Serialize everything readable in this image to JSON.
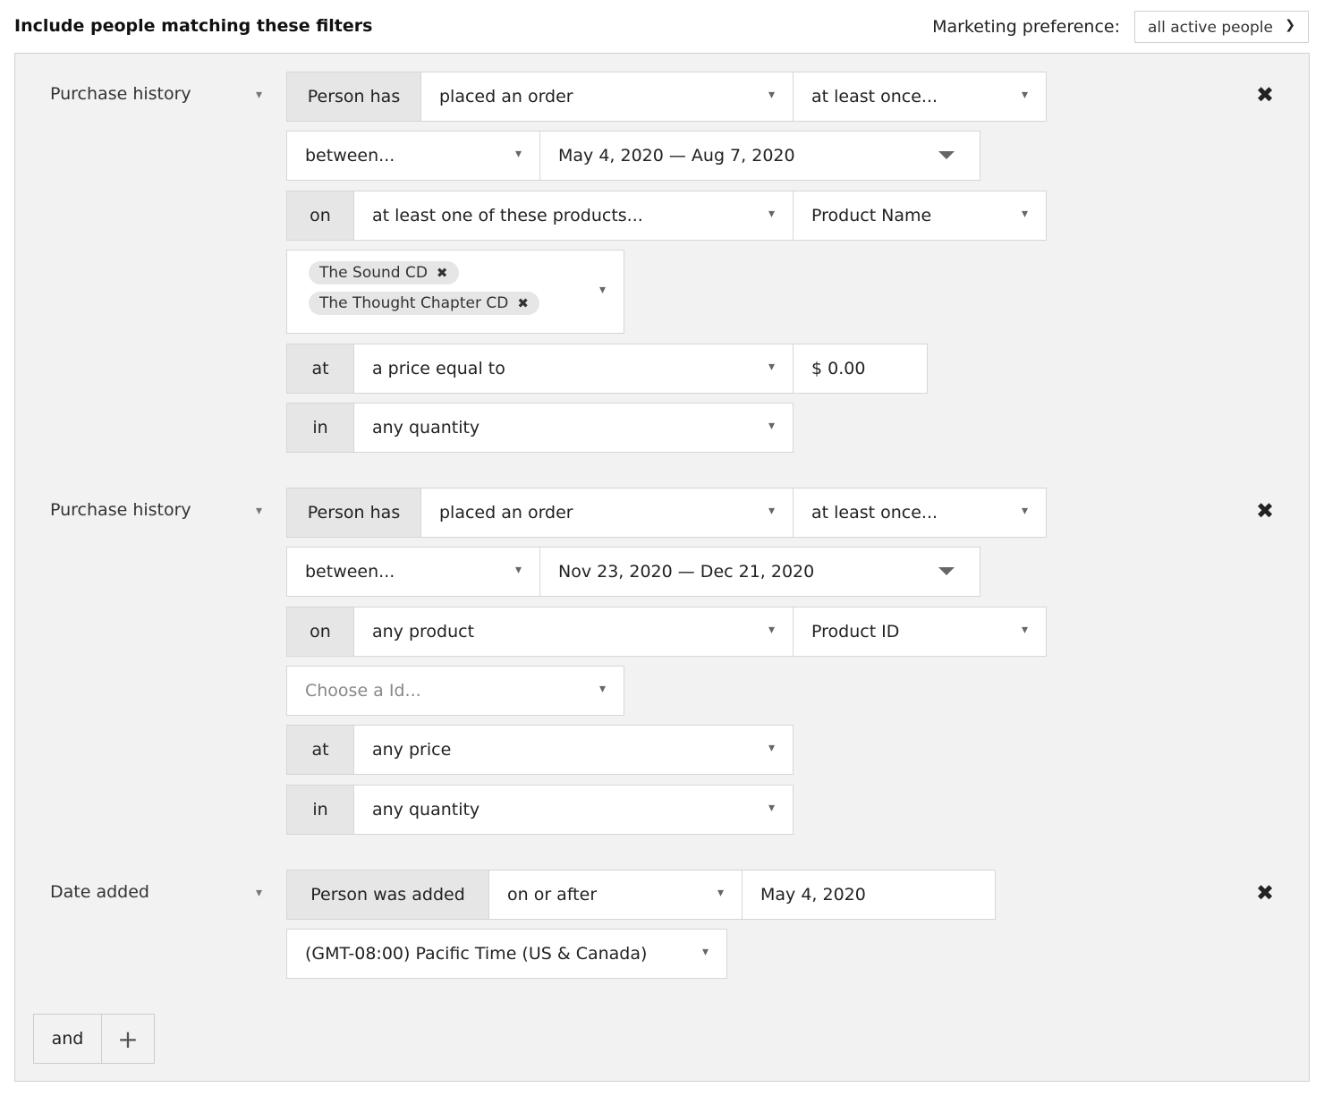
{
  "header": {
    "title": "Include people matching these filters",
    "marketing_label": "Marketing preference:",
    "marketing_value": "all active people"
  },
  "groups": [
    {
      "type": "Purchase history",
      "rows": {
        "r1": {
          "prefix": "Person has",
          "action": "placed an order",
          "frequency": "at least once..."
        },
        "r2": {
          "range": "between...",
          "dates": "May 4, 2020 — Aug 7, 2020"
        },
        "r3": {
          "prefix": "on",
          "product_match": "at least one of these products...",
          "field": "Product Name"
        },
        "r4": {
          "tags": [
            "The Sound CD",
            "The Thought Chapter CD"
          ]
        },
        "r5": {
          "prefix": "at",
          "price_cond": "a price equal to",
          "price": "$ 0.00"
        },
        "r6": {
          "prefix": "in",
          "quantity": "any quantity"
        }
      }
    },
    {
      "type": "Purchase history",
      "rows": {
        "r1": {
          "prefix": "Person has",
          "action": "placed an order",
          "frequency": "at least once..."
        },
        "r2": {
          "range": "between...",
          "dates": "Nov 23, 2020 — Dec 21, 2020"
        },
        "r3": {
          "prefix": "on",
          "product_match": "any product",
          "field": "Product ID"
        },
        "r4": {
          "placeholder": "Choose a Id..."
        },
        "r5": {
          "prefix": "at",
          "price_cond": "any price"
        },
        "r6": {
          "prefix": "in",
          "quantity": "any quantity"
        }
      }
    },
    {
      "type": "Date added",
      "rows": {
        "r1": {
          "prefix": "Person was added",
          "cond": "on or after",
          "date": "May 4, 2020"
        },
        "r2": {
          "timezone": "(GMT-08:00) Pacific Time (US & Canada)"
        }
      }
    }
  ],
  "footer": {
    "and_label": "and",
    "add_label": "+"
  },
  "icons": {
    "close": "close-icon",
    "chevron": "chevron-down-icon",
    "triangle": "caret-down-icon"
  }
}
